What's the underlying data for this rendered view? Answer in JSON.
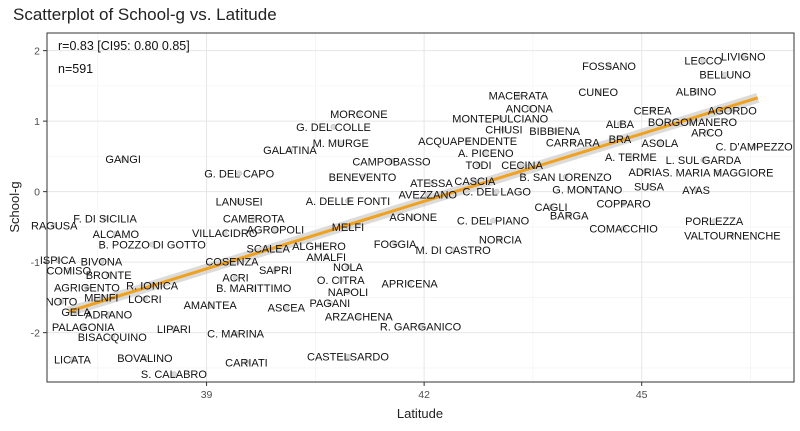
{
  "chart_data": {
    "type": "scatter",
    "title": "Scatterplot of School-g vs. Latitude",
    "xlabel": "Latitude",
    "ylabel": "School-g",
    "xlim": [
      36.8,
      47.1
    ],
    "ylim": [
      -2.7,
      2.25
    ],
    "x_ticks": [
      39,
      42,
      45
    ],
    "y_ticks": [
      -2,
      -1,
      0,
      1,
      2
    ],
    "grid": true,
    "annotations": [
      "r=0.83 [CI95: 0.80 0.85]",
      "n=591"
    ],
    "regression": {
      "x": [
        37.1,
        46.6
      ],
      "y": [
        -1.7,
        1.33
      ],
      "color": "#f0a21e"
    },
    "labels": [
      {
        "text": "LIVIGNO",
        "x": 46.4,
        "y": 1.92
      },
      {
        "text": "LECCO",
        "x": 45.85,
        "y": 1.86
      },
      {
        "text": "FOSSANO",
        "x": 44.55,
        "y": 1.78
      },
      {
        "text": "BELLUNO",
        "x": 46.15,
        "y": 1.66
      },
      {
        "text": "ALBINO",
        "x": 45.75,
        "y": 1.42
      },
      {
        "text": "MACERATA",
        "x": 43.3,
        "y": 1.36
      },
      {
        "text": "CUNEO",
        "x": 44.4,
        "y": 1.41
      },
      {
        "text": "ANCONA",
        "x": 43.45,
        "y": 1.18
      },
      {
        "text": "CEREA",
        "x": 45.15,
        "y": 1.15
      },
      {
        "text": "AGORDO",
        "x": 46.25,
        "y": 1.15
      },
      {
        "text": "MORCONE",
        "x": 41.1,
        "y": 1.1
      },
      {
        "text": "MONTEPULCIANO",
        "x": 43.05,
        "y": 1.04
      },
      {
        "text": "BORGOMANERO",
        "x": 45.7,
        "y": 0.99
      },
      {
        "text": "ALBA",
        "x": 44.7,
        "y": 0.96
      },
      {
        "text": "G. DEL COLLE",
        "x": 40.75,
        "y": 0.92
      },
      {
        "text": "CHIUSI",
        "x": 43.1,
        "y": 0.88
      },
      {
        "text": "BIBBIENA",
        "x": 43.8,
        "y": 0.86
      },
      {
        "text": "ARCO",
        "x": 45.9,
        "y": 0.84
      },
      {
        "text": "ACQUAPENDENTE",
        "x": 42.6,
        "y": 0.72
      },
      {
        "text": "CARRARA",
        "x": 44.05,
        "y": 0.7
      },
      {
        "text": "BRA",
        "x": 44.7,
        "y": 0.75
      },
      {
        "text": "ASOLA",
        "x": 45.25,
        "y": 0.69
      },
      {
        "text": "M. MURGE",
        "x": 40.85,
        "y": 0.69
      },
      {
        "text": "C. D'AMPEZZO",
        "x": 46.55,
        "y": 0.64
      },
      {
        "text": "GALATINA",
        "x": 40.15,
        "y": 0.59
      },
      {
        "text": "A. PICENO",
        "x": 42.85,
        "y": 0.55
      },
      {
        "text": "A. TERME",
        "x": 44.85,
        "y": 0.49
      },
      {
        "text": "L. SUL GARDA",
        "x": 45.85,
        "y": 0.45
      },
      {
        "text": "GANGI",
        "x": 37.85,
        "y": 0.46
      },
      {
        "text": "CAMPOBASSO",
        "x": 41.55,
        "y": 0.43
      },
      {
        "text": "TODI",
        "x": 42.75,
        "y": 0.38
      },
      {
        "text": "CECINA",
        "x": 43.35,
        "y": 0.38
      },
      {
        "text": "ADRIA",
        "x": 45.05,
        "y": 0.28
      },
      {
        "text": "S. MARIA MAGGIORE",
        "x": 46.05,
        "y": 0.27
      },
      {
        "text": "G. DEL CAPO",
        "x": 39.45,
        "y": 0.26
      },
      {
        "text": "BENEVENTO",
        "x": 41.15,
        "y": 0.21
      },
      {
        "text": "B. SAN LORENZO",
        "x": 43.95,
        "y": 0.21
      },
      {
        "text": "ATESSA",
        "x": 42.1,
        "y": 0.12
      },
      {
        "text": "CASCIA",
        "x": 42.7,
        "y": 0.15
      },
      {
        "text": "SUSA",
        "x": 45.1,
        "y": 0.07
      },
      {
        "text": "AYAS",
        "x": 45.75,
        "y": 0.02
      },
      {
        "text": "G. MONTANO",
        "x": 44.25,
        "y": 0.03
      },
      {
        "text": "AVEZZANO",
        "x": 42.05,
        "y": -0.04
      },
      {
        "text": "C. DEL LAGO",
        "x": 43.0,
        "y": 0.0
      },
      {
        "text": "LANUSEI",
        "x": 39.45,
        "y": -0.14
      },
      {
        "text": "A. DELLE FONTI",
        "x": 40.95,
        "y": -0.13
      },
      {
        "text": "COPPARO",
        "x": 44.75,
        "y": -0.17
      },
      {
        "text": "CAGLI",
        "x": 43.75,
        "y": -0.22
      },
      {
        "text": "CAMEROTA",
        "x": 39.65,
        "y": -0.38
      },
      {
        "text": "AGNONE",
        "x": 41.85,
        "y": -0.36
      },
      {
        "text": "F. DI SICILIA",
        "x": 37.6,
        "y": -0.38
      },
      {
        "text": "C. DEL PIANO",
        "x": 42.95,
        "y": -0.41
      },
      {
        "text": "BARGA",
        "x": 44.0,
        "y": -0.34
      },
      {
        "text": "PORLEZZA",
        "x": 46.0,
        "y": -0.42
      },
      {
        "text": "RAGUSA",
        "x": 36.9,
        "y": -0.48
      },
      {
        "text": "MELFI",
        "x": 40.95,
        "y": -0.5
      },
      {
        "text": "AGROPOLI",
        "x": 39.95,
        "y": -0.54
      },
      {
        "text": "COMACCHIO",
        "x": 44.75,
        "y": -0.52
      },
      {
        "text": "ALCAMO",
        "x": 37.75,
        "y": -0.6
      },
      {
        "text": "VILLACIDRO",
        "x": 39.25,
        "y": -0.59
      },
      {
        "text": "VALTOURNENCHE",
        "x": 46.25,
        "y": -0.62
      },
      {
        "text": "NORCIA",
        "x": 43.05,
        "y": -0.68
      },
      {
        "text": "B. POZZO DI GOTTO",
        "x": 38.25,
        "y": -0.75
      },
      {
        "text": "ALGHERO",
        "x": 40.55,
        "y": -0.77
      },
      {
        "text": "FOGGIA",
        "x": 41.6,
        "y": -0.74
      },
      {
        "text": "SCALEA",
        "x": 39.85,
        "y": -0.81
      },
      {
        "text": "M. DI CASTRO",
        "x": 42.4,
        "y": -0.83
      },
      {
        "text": "AMALFI",
        "x": 40.65,
        "y": -0.93
      },
      {
        "text": "ISPICA",
        "x": 36.95,
        "y": -0.97
      },
      {
        "text": "BIVONA",
        "x": 37.55,
        "y": -0.99
      },
      {
        "text": "COSENZA",
        "x": 39.35,
        "y": -0.99
      },
      {
        "text": "COMISO",
        "x": 37.1,
        "y": -1.12
      },
      {
        "text": "SAPRI",
        "x": 39.95,
        "y": -1.11
      },
      {
        "text": "NOLA",
        "x": 40.95,
        "y": -1.07
      },
      {
        "text": "BRONTE",
        "x": 37.65,
        "y": -1.18
      },
      {
        "text": "ACRI",
        "x": 39.4,
        "y": -1.22
      },
      {
        "text": "O. CITRA",
        "x": 40.85,
        "y": -1.25
      },
      {
        "text": "AGRIGENTO",
        "x": 37.35,
        "y": -1.36
      },
      {
        "text": "R. IONICA",
        "x": 38.25,
        "y": -1.33
      },
      {
        "text": "B. MARITTIMO",
        "x": 39.65,
        "y": -1.37
      },
      {
        "text": "APRICENA",
        "x": 41.8,
        "y": -1.3
      },
      {
        "text": "NAPOLI",
        "x": 40.95,
        "y": -1.42
      },
      {
        "text": "MENFI",
        "x": 37.55,
        "y": -1.5
      },
      {
        "text": "LOCRI",
        "x": 38.15,
        "y": -1.52
      },
      {
        "text": "NOTO",
        "x": 37.0,
        "y": -1.56
      },
      {
        "text": "PAGANI",
        "x": 40.7,
        "y": -1.58
      },
      {
        "text": "AMANTEA",
        "x": 39.05,
        "y": -1.61
      },
      {
        "text": "ASCEA",
        "x": 40.1,
        "y": -1.64
      },
      {
        "text": "GELA",
        "x": 37.2,
        "y": -1.71
      },
      {
        "text": "ADRANO",
        "x": 37.65,
        "y": -1.74
      },
      {
        "text": "ARZACHENA",
        "x": 41.1,
        "y": -1.77
      },
      {
        "text": "PALAGONIA",
        "x": 37.3,
        "y": -1.92
      },
      {
        "text": "R. GARGANICO",
        "x": 41.95,
        "y": -1.91
      },
      {
        "text": "LIPARI",
        "x": 38.55,
        "y": -1.95
      },
      {
        "text": "C. MARINA",
        "x": 39.4,
        "y": -2.01
      },
      {
        "text": "BISACQUINO",
        "x": 37.7,
        "y": -2.06
      },
      {
        "text": "CASTELSARDO",
        "x": 40.95,
        "y": -2.34
      },
      {
        "text": "LICATA",
        "x": 37.15,
        "y": -2.38
      },
      {
        "text": "BOVALINO",
        "x": 38.15,
        "y": -2.36
      },
      {
        "text": "CARIATI",
        "x": 39.55,
        "y": -2.42
      },
      {
        "text": "S. CALABRO",
        "x": 38.55,
        "y": -2.59
      }
    ]
  }
}
